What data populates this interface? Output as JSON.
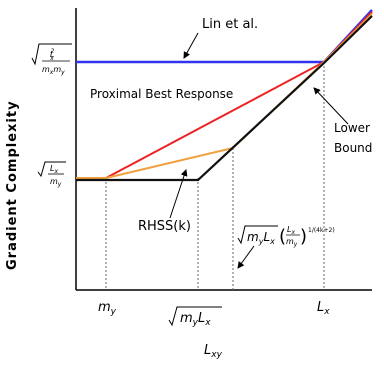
{
  "chart_data": {
    "type": "line",
    "title": "",
    "xlabel": "L_xy",
    "ylabel": "Gradient Complexity",
    "scale": "log-log",
    "grid": false,
    "x_ticks": [
      "m_y",
      "√(m_y L_x)",
      "L_x"
    ],
    "y_ticks": [
      "√(L_x / m_y)",
      "√(L_x² / (m_x m_y))"
    ],
    "series": [
      {
        "name": "Lin et al.",
        "color": "#3333ee",
        "points": [
          [
            "0",
            "√(L_x²/(m_x m_y))"
          ],
          [
            "L_x",
            "√(L_x²/(m_x m_y))"
          ],
          [
            "∞",
            "↑"
          ]
        ]
      },
      {
        "name": "Proximal Best Response",
        "color": "#ee2222",
        "points": [
          [
            "0",
            "√(L_x/m_y)"
          ],
          [
            "m_y",
            "√(L_x/m_y)"
          ],
          [
            "L_x",
            "√(L_x²/(m_x m_y))"
          ],
          [
            "∞",
            "↑"
          ]
        ]
      },
      {
        "name": "RHSS(k)",
        "color": "#f0a040",
        "points": [
          [
            "0",
            "√(L_x/m_y)"
          ],
          [
            "m_y",
            "√(L_x/m_y)"
          ],
          [
            "√(m_y L_x)",
            "√(m_y L_x)(L_x/m_y)^(1/(4k+2))"
          ],
          [
            "L_x",
            "√(L_x²/(m_x m_y))"
          ],
          [
            "∞",
            "↑"
          ]
        ]
      },
      {
        "name": "Lower Bound",
        "color": "#111111",
        "points": [
          [
            "0",
            "√(L_x/m_y)"
          ],
          [
            "√(m_y L_x)",
            "√(L_x/m_y)"
          ],
          [
            "L_x",
            "√(L_x²/(m_x m_y))"
          ],
          [
            "∞",
            "↑"
          ]
        ]
      }
    ],
    "annotations": {
      "rhss_point_formula": "√(m_y L_x)(L_x/m_y)^(1/(4k+2))"
    }
  },
  "labels": {
    "lin": "Lin et al.",
    "pbr": "Proximal Best Response",
    "lower1": "Lower",
    "lower2": "Bound",
    "rhss": "RHSS(k)",
    "ylabel": "Gradient Complexity",
    "xlabel_main": "L",
    "xlabel_sub": "xy",
    "xt1_main": "m",
    "xt1_sub": "y",
    "xt2_m": "m",
    "xt2_msub": "y",
    "xt2_l": "L",
    "xt2_lsub": "x",
    "xt3_main": "L",
    "xt3_sub": "x",
    "yt_low_num": "L",
    "yt_low_numsub": "x",
    "yt_low_den": "m",
    "yt_low_densub": "y",
    "yt_high_num": "L",
    "yt_high_numsub": "x",
    "yt_high_numsup": "2",
    "yt_high_den1": "m",
    "yt_high_den1sub": "x",
    "yt_high_den2": "m",
    "yt_high_den2sub": "y",
    "ann_m": "m",
    "ann_msub": "y",
    "ann_l": "L",
    "ann_lsub": "x",
    "ann_fnum": "L",
    "ann_fnumsub": "x",
    "ann_fden": "m",
    "ann_fdensub": "y",
    "ann_exp": "1/(4k+2)"
  }
}
